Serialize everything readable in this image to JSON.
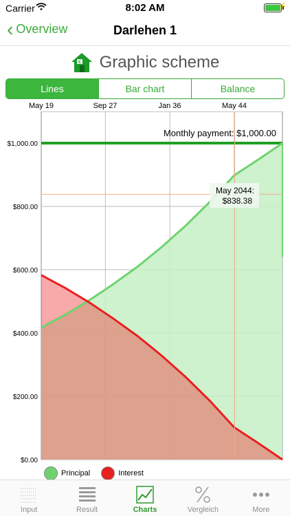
{
  "status": {
    "carrier": "Carrier",
    "time": "8:02 AM"
  },
  "nav": {
    "back_label": "Overview",
    "title": "Darlehen 1"
  },
  "heading": {
    "title": "Graphic scheme"
  },
  "segments": [
    {
      "label": "Lines",
      "active": true
    },
    {
      "label": "Bar chart",
      "active": false
    },
    {
      "label": "Balance",
      "active": false
    }
  ],
  "colors": {
    "accent": "#3cb63c",
    "principal": "#6ed36e",
    "interest": "#e82020"
  },
  "chart_data": {
    "type": "area",
    "x_tick_labels": [
      "May 19",
      "Sep 27",
      "Jan 36",
      "May 44"
    ],
    "y_tick_labels": [
      "$1,000.00",
      "$800.00",
      "$600.00",
      "$400.00",
      "$200.00",
      "$0.00"
    ],
    "ylim": [
      0,
      1100
    ],
    "monthly_payment_label": "Monthly payment: $1,000.00",
    "monthly_payment": 1000,
    "x_range": [
      "May 19",
      "Jun 48"
    ],
    "series": [
      {
        "name": "Principal",
        "x": [
          0,
          0.1,
          0.2,
          0.3,
          0.4,
          0.5,
          0.6,
          0.7,
          0.8,
          0.9,
          1.0
        ],
        "values": [
          417,
          458,
          504,
          555,
          610,
          672,
          740,
          815,
          898,
          948,
          1000
        ]
      },
      {
        "name": "Interest",
        "x": [
          0,
          0.1,
          0.2,
          0.3,
          0.4,
          0.5,
          0.6,
          0.7,
          0.8,
          0.9,
          1.0
        ],
        "values": [
          583,
          542,
          496,
          445,
          390,
          328,
          260,
          185,
          102,
          52,
          0
        ]
      }
    ],
    "tooltip": {
      "date": "May 2044:",
      "value": "$838.38",
      "x_frac": 0.802,
      "y": 838.38
    },
    "legend": [
      {
        "name": "Principal",
        "color": "#6ed36e"
      },
      {
        "name": "Interest",
        "color": "#e82020"
      }
    ]
  },
  "tabs": [
    {
      "label": "Input",
      "icon": "input-grid-icon"
    },
    {
      "label": "Result",
      "icon": "result-list-icon"
    },
    {
      "label": "Charts",
      "icon": "line-chart-icon",
      "active": true
    },
    {
      "label": "Vergleich",
      "icon": "percent-icon"
    },
    {
      "label": "More",
      "icon": "more-dots-icon"
    }
  ]
}
